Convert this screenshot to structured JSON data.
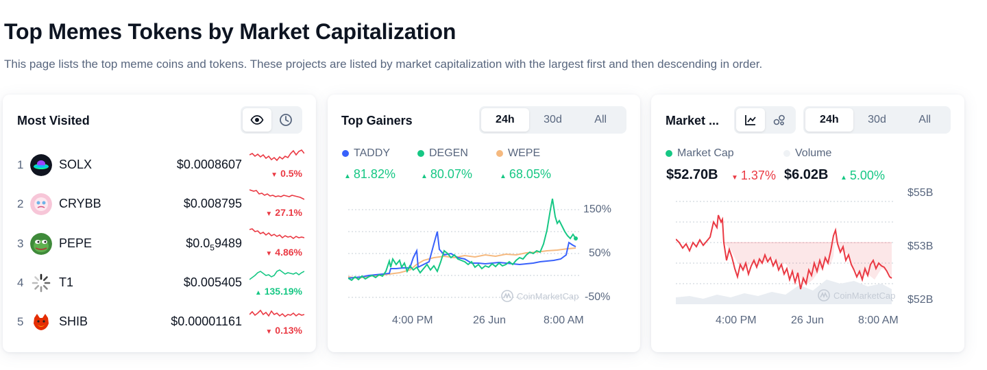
{
  "page": {
    "title": "Top Memes Tokens by Market Capitalization",
    "description": "This page lists the top meme coins and tokens. These projects are listed by market capitalization with the largest first and then descending in order."
  },
  "most_visited": {
    "title": "Most Visited",
    "toggle_icons": [
      "eye-icon",
      "clock-icon"
    ],
    "items": [
      {
        "rank": "1",
        "name": "SOLX",
        "price": "$0.0008607",
        "change": "0.5%",
        "direction": "down",
        "icon": "solx-logo-icon"
      },
      {
        "rank": "2",
        "name": "CRYBB",
        "price": "$0.008795",
        "change": "27.1%",
        "direction": "down",
        "icon": "crybb-logo-icon"
      },
      {
        "rank": "3",
        "name": "PEPE",
        "price_prefix": "$0.0",
        "price_sub": "5",
        "price_suffix": "9489",
        "change": "4.86%",
        "direction": "down",
        "icon": "pepe-logo-icon"
      },
      {
        "rank": "4",
        "name": "T1",
        "price": "$0.005405",
        "change": "135.19%",
        "direction": "up",
        "icon": "t1-logo-icon"
      },
      {
        "rank": "5",
        "name": "SHIB",
        "price": "$0.00001161",
        "change": "0.13%",
        "direction": "down",
        "icon": "shib-logo-icon"
      }
    ]
  },
  "top_gainers": {
    "title": "Top Gainers",
    "tabs": [
      "24h",
      "30d",
      "All"
    ],
    "active_tab": "24h",
    "series": [
      {
        "name": "TADDY",
        "change": "81.82%",
        "color": "#3861fb"
      },
      {
        "name": "DEGEN",
        "change": "80.07%",
        "color": "#16c784"
      },
      {
        "name": "WEPE",
        "change": "68.05%",
        "color": "#f5b97f"
      }
    ],
    "y_ticks": [
      "150%",
      "50%",
      "-50%"
    ],
    "x_ticks": [
      "4:00 PM",
      "26 Jun",
      "8:00 AM"
    ],
    "watermark": "CoinMarketCap"
  },
  "market": {
    "title": "Market ...",
    "view_icons": [
      "line-chart-icon",
      "bubbles-icon"
    ],
    "tabs": [
      "24h",
      "30d",
      "All"
    ],
    "active_tab": "24h",
    "legend": [
      {
        "name": "Market Cap",
        "color": "#16c784"
      },
      {
        "name": "Volume",
        "color": "#eff2f5"
      }
    ],
    "market_cap": "$52.70B",
    "market_cap_change": "1.37%",
    "volume": "$6.02B",
    "volume_change": "5.00%",
    "y_ticks": [
      "$55B",
      "$53B",
      "$52B"
    ],
    "x_ticks": [
      "4:00 PM",
      "26 Jun",
      "8:00 AM"
    ],
    "watermark": "CoinMarketCap"
  },
  "colors": {
    "up": "#16c784",
    "down": "#ea3943",
    "text": "#0d1421",
    "muted": "#58667e"
  }
}
